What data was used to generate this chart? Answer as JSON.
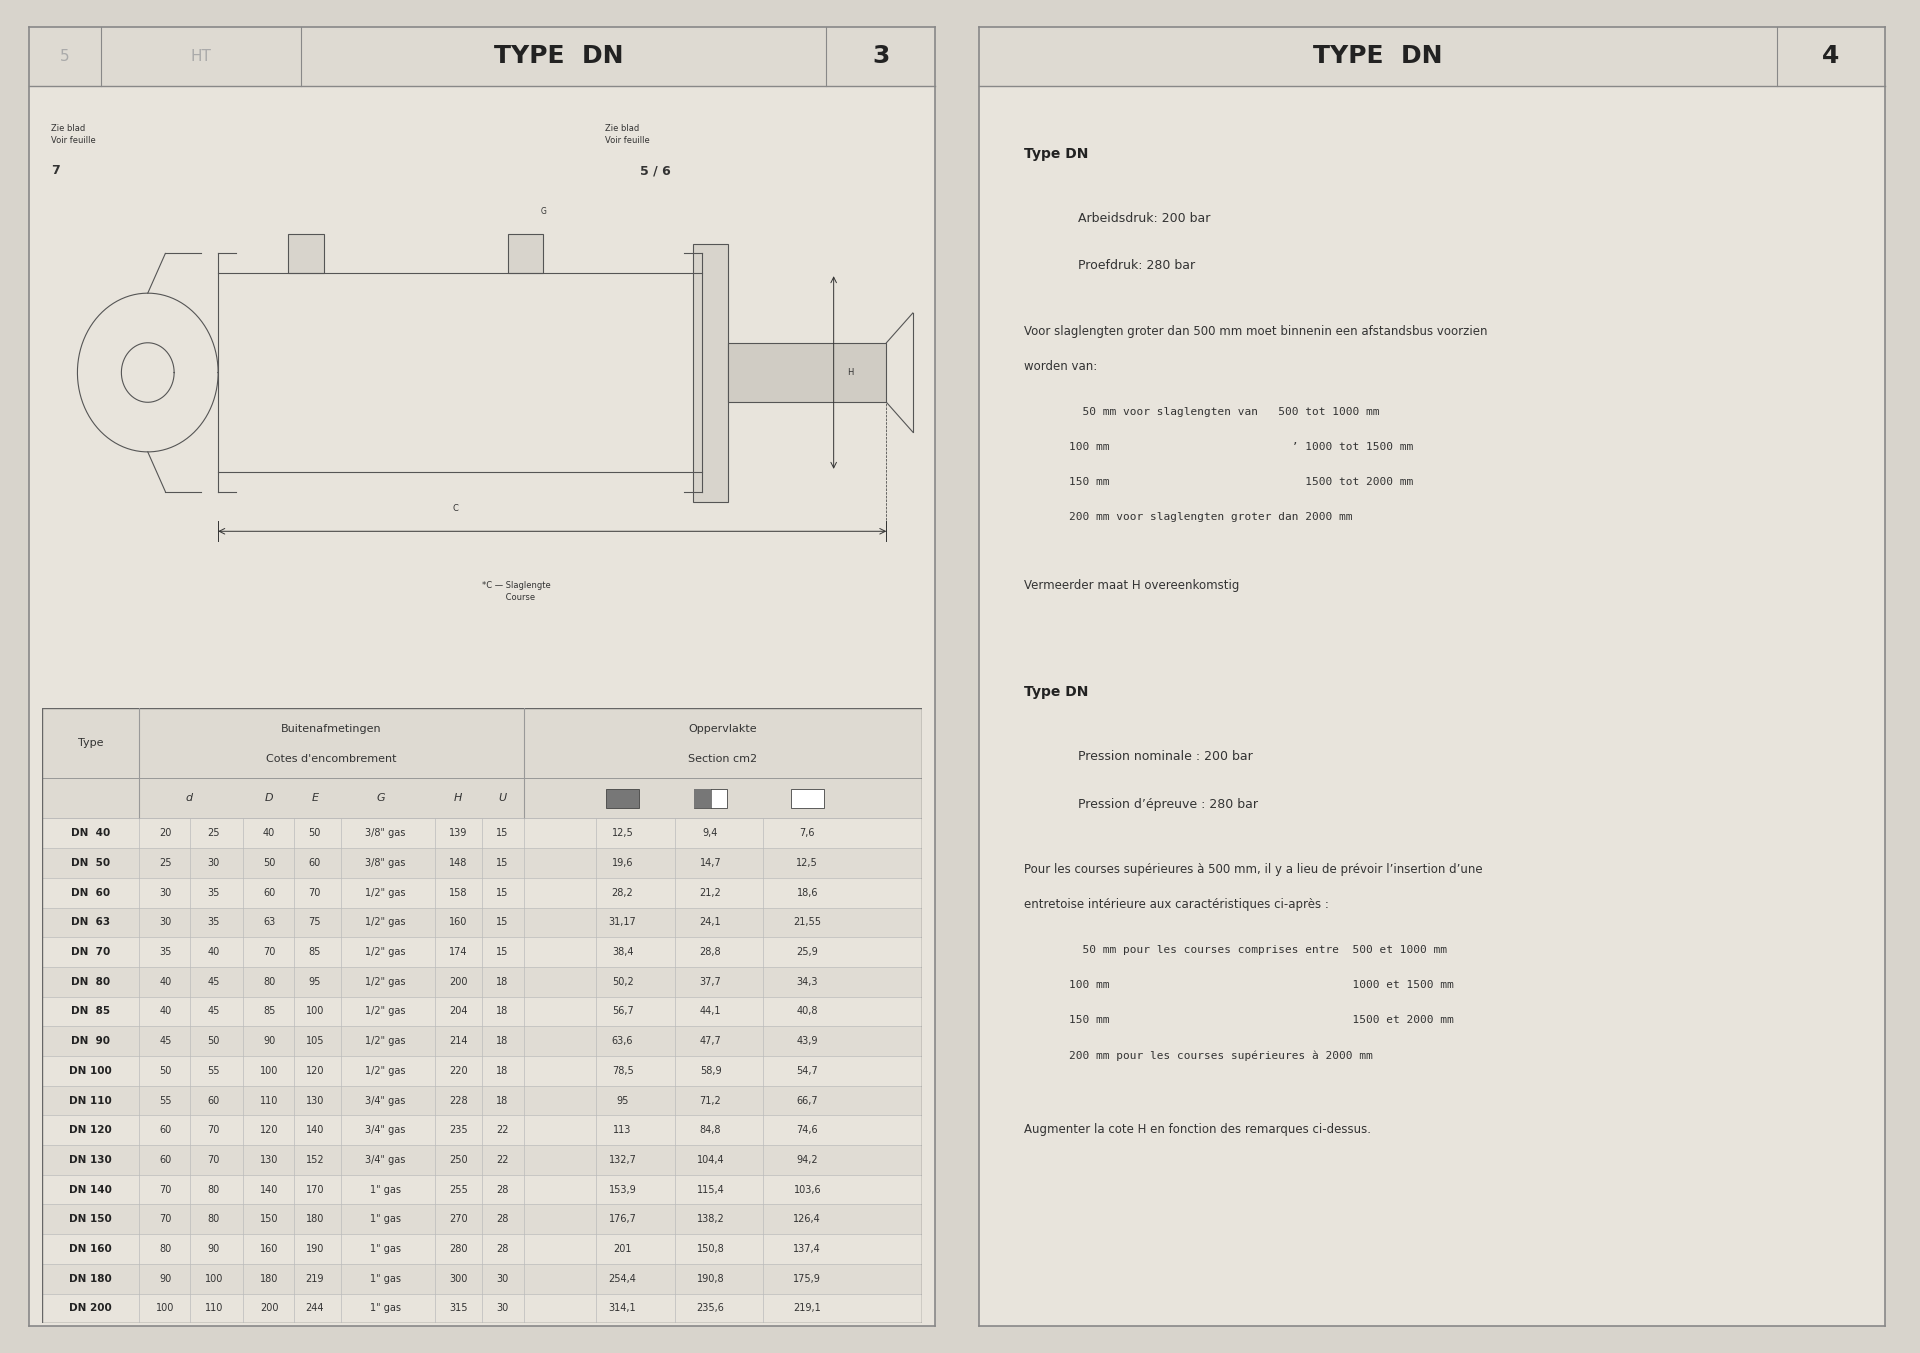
{
  "bg_color": "#d8d4cc",
  "panel_bg": "#e8e4dc",
  "title_left": "TYPE  DN",
  "page_num_left": "3",
  "title_right": "TYPE  DN",
  "page_num_right": "4",
  "type_col": "Type",
  "rows": [
    [
      "DN  40",
      "20",
      "25",
      "40",
      "50",
      "3/8\" gas",
      "139",
      "15",
      "12,5",
      "9,4",
      "7,6"
    ],
    [
      "DN  50",
      "25",
      "30",
      "50",
      "60",
      "3/8\" gas",
      "148",
      "15",
      "19,6",
      "14,7",
      "12,5"
    ],
    [
      "DN  60",
      "30",
      "35",
      "60",
      "70",
      "1/2\" gas",
      "158",
      "15",
      "28,2",
      "21,2",
      "18,6"
    ],
    [
      "DN  63",
      "30",
      "35",
      "63",
      "75",
      "1/2\" gas",
      "160",
      "15",
      "31,17",
      "24,1",
      "21,55"
    ],
    [
      "DN  70",
      "35",
      "40",
      "70",
      "85",
      "1/2\" gas",
      "174",
      "15",
      "38,4",
      "28,8",
      "25,9"
    ],
    [
      "DN  80",
      "40",
      "45",
      "80",
      "95",
      "1/2\" gas",
      "200",
      "18",
      "50,2",
      "37,7",
      "34,3"
    ],
    [
      "DN  85",
      "40",
      "45",
      "85",
      "100",
      "1/2\" gas",
      "204",
      "18",
      "56,7",
      "44,1",
      "40,8"
    ],
    [
      "DN  90",
      "45",
      "50",
      "90",
      "105",
      "1/2\" gas",
      "214",
      "18",
      "63,6",
      "47,7",
      "43,9"
    ],
    [
      "DN 100",
      "50",
      "55",
      "100",
      "120",
      "1/2\" gas",
      "220",
      "18",
      "78,5",
      "58,9",
      "54,7"
    ],
    [
      "DN 110",
      "55",
      "60",
      "110",
      "130",
      "3/4\" gas",
      "228",
      "18",
      "95",
      "71,2",
      "66,7"
    ],
    [
      "DN 120",
      "60",
      "70",
      "120",
      "140",
      "3/4\" gas",
      "235",
      "22",
      "113",
      "84,8",
      "74,6"
    ],
    [
      "DN 130",
      "60",
      "70",
      "130",
      "152",
      "3/4\" gas",
      "250",
      "22",
      "132,7",
      "104,4",
      "94,2"
    ],
    [
      "DN 140",
      "70",
      "80",
      "140",
      "170",
      "1\" gas",
      "255",
      "28",
      "153,9",
      "115,4",
      "103,6"
    ],
    [
      "DN 150",
      "70",
      "80",
      "150",
      "180",
      "1\" gas",
      "270",
      "28",
      "176,7",
      "138,2",
      "126,4"
    ],
    [
      "DN 160",
      "80",
      "90",
      "160",
      "190",
      "1\" gas",
      "280",
      "28",
      "201",
      "150,8",
      "137,4"
    ],
    [
      "DN 180",
      "90",
      "100",
      "180",
      "219",
      "1\" gas",
      "300",
      "30",
      "254,4",
      "190,8",
      "175,9"
    ],
    [
      "DN 200",
      "100",
      "110",
      "200",
      "244",
      "1\" gas",
      "315",
      "30",
      "314,1",
      "235,6",
      "219,1"
    ]
  ],
  "right_text": {
    "section1_title": "Type DN",
    "arbeidsdruk": "Arbeidsdruk: 200 bar",
    "proefdruk": "Proefdruk: 280 bar",
    "para1a": "Voor slaglengten groter dan 500 mm moet binnenin een afstandsbus voorzien",
    "para1b": "worden van:",
    "list1": [
      "  50 mm voor slaglengten van   500 tot 1000 mm",
      "100 mm                           ’ 1000 tot 1500 mm",
      "150 mm                             1500 tot 2000 mm",
      "200 mm voor slaglengten groter dan 2000 mm"
    ],
    "para2": "Vermeerder maat H overeenkomstig",
    "section2_title": "Type DN",
    "pression_nom": "Pression nominale : 200 bar",
    "pression_ep": "Pression d’épreuve : 280 bar",
    "para3a": "Pour les courses supérieures à 500 mm, il y a lieu de prévoir l’insertion d’une",
    "para3b": "entretoise intérieure aux caractéristiques ci-après :",
    "list2": [
      "  50 mm pour les courses comprises entre  500 et 1000 mm",
      "100 mm                                    1000 et 1500 mm",
      "150 mm                                    1500 et 2000 mm",
      "200 mm pour les courses supérieures à 2000 mm"
    ],
    "para4": "Augmenter la cote H en fonction des remarques ci-dessus."
  },
  "diagram_note1": "Zie blad\nVoir feuille",
  "diagram_note1_num": "7",
  "diagram_note2": "Zie blad\nVoir feuille",
  "diagram_note2_num": "5 / 6",
  "diagram_note3": "*C — Slaglengte\n         Course"
}
